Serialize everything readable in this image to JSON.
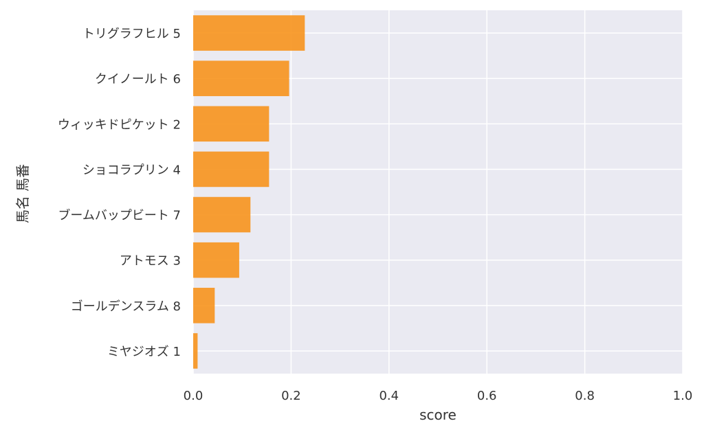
{
  "chart_data": {
    "type": "bar",
    "orientation": "horizontal",
    "categories": [
      "トリグラフヒル 5",
      "クイノールト 6",
      "ウィッキドピケット 2",
      "ショコラプリン 4",
      "ブームバップビート 7",
      "アトモス 3",
      "ゴールデンスラム 8",
      "ミヤジオズ 1"
    ],
    "values": [
      0.228,
      0.196,
      0.155,
      0.155,
      0.117,
      0.094,
      0.044,
      0.009
    ],
    "xlabel": "score",
    "ylabel": "馬名 馬番",
    "xlim": [
      0.0,
      1.0
    ],
    "xticks": [
      "0.0",
      "0.2",
      "0.4",
      "0.6",
      "0.8",
      "1.0"
    ],
    "grid": true,
    "bar_color": "#f7941d",
    "plot_background": "#eaeaf2",
    "grid_color": "#ffffff"
  }
}
